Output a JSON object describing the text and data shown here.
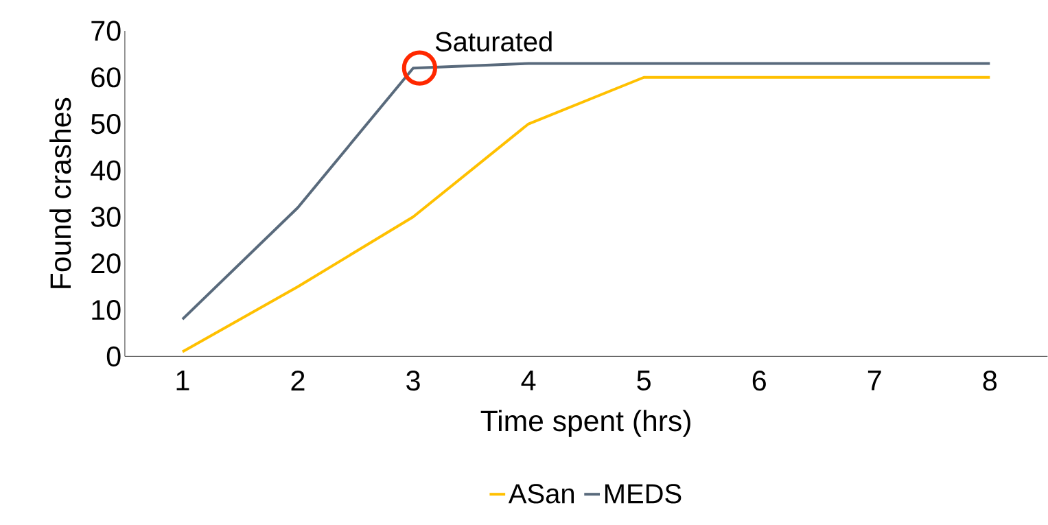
{
  "chart_data": {
    "type": "line",
    "xlabel": "Time spent (hrs)",
    "ylabel": "Found crashes",
    "categories": [
      "1",
      "2",
      "3",
      "4",
      "5",
      "6",
      "7",
      "8"
    ],
    "series": [
      {
        "name": "ASan",
        "color": "#ffc000",
        "values": [
          1,
          15,
          30,
          50,
          60,
          60,
          60,
          60
        ]
      },
      {
        "name": "MEDS",
        "color": "#596a7c",
        "values": [
          8,
          32,
          62,
          63,
          63,
          63,
          63,
          63
        ]
      }
    ],
    "ylim": [
      0,
      70
    ],
    "yticks": [
      0,
      10,
      20,
      30,
      40,
      50,
      60,
      70
    ],
    "annotations": [
      {
        "text": "Saturated",
        "x": "3",
        "y": 62
      }
    ],
    "legend": "bottom",
    "grid": false,
    "marker": "none",
    "line_style": "solid"
  }
}
